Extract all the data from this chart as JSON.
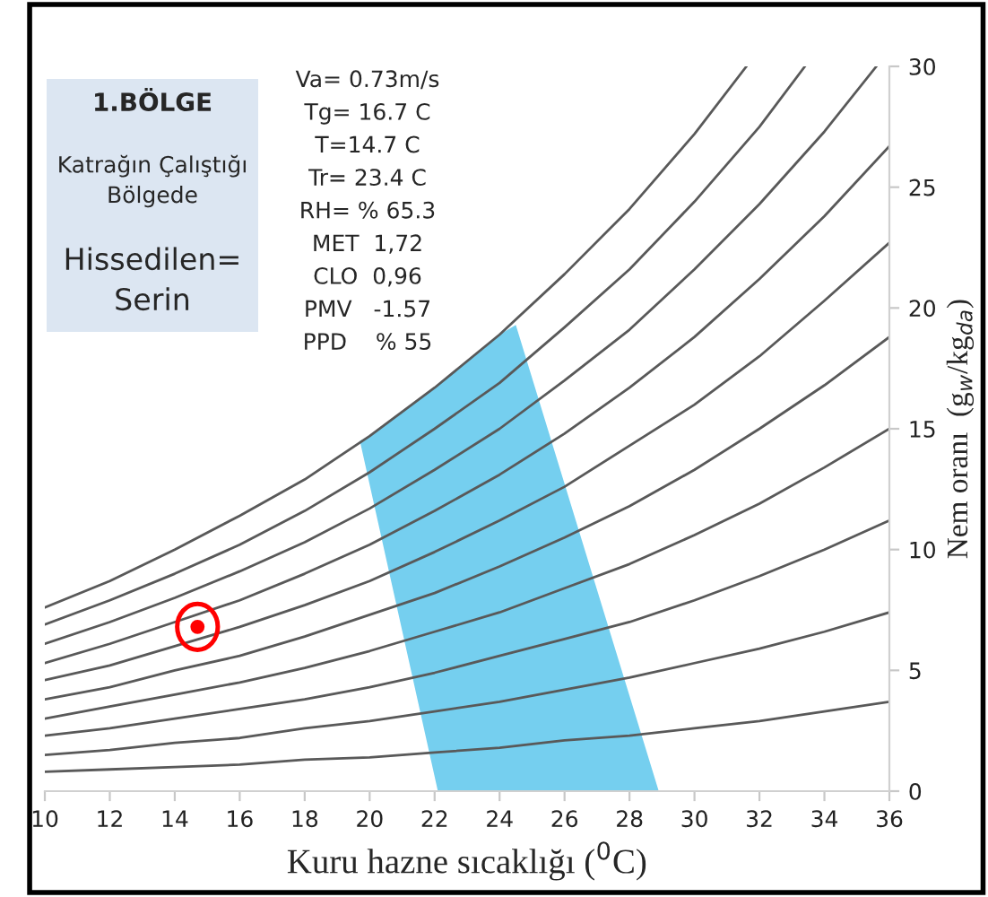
{
  "chart_data": {
    "type": "line",
    "xlabel": "Kuru hazne sıcaklığı ($^{0}$C)",
    "ylabel": "Nem oranı  (g$_{w}$/kg$_{da}$)",
    "x": [
      10,
      12,
      14,
      16,
      18,
      20,
      22,
      24,
      26,
      28,
      30,
      32,
      34,
      36
    ],
    "xlim": [
      10,
      36
    ],
    "xticks": [
      10,
      12,
      14,
      16,
      18,
      20,
      22,
      24,
      26,
      28,
      30,
      32,
      34,
      36
    ],
    "ylim": [
      0,
      30
    ],
    "yticks": [
      0,
      5,
      10,
      15,
      20,
      25,
      30
    ],
    "grid": false,
    "legend": false,
    "marker": "none",
    "line_style": "solid",
    "series": [
      {
        "color": "#595959",
        "values": [
          0.8,
          0.9,
          1.0,
          1.1,
          1.3,
          1.4,
          1.6,
          1.8,
          2.1,
          2.3,
          2.6,
          2.9,
          3.3,
          3.7
        ]
      },
      {
        "color": "#595959",
        "values": [
          1.5,
          1.7,
          2.0,
          2.2,
          2.6,
          2.9,
          3.3,
          3.7,
          4.2,
          4.7,
          5.3,
          5.9,
          6.6,
          7.4
        ]
      },
      {
        "color": "#595959",
        "values": [
          2.3,
          2.6,
          3.0,
          3.4,
          3.8,
          4.3,
          4.9,
          5.6,
          6.3,
          7.0,
          7.9,
          8.9,
          10.0,
          11.2
        ]
      },
      {
        "color": "#595959",
        "values": [
          3.0,
          3.5,
          4.0,
          4.5,
          5.1,
          5.8,
          6.6,
          7.4,
          8.4,
          9.4,
          10.6,
          11.9,
          13.4,
          15.0
        ]
      },
      {
        "color": "#595959",
        "values": [
          3.8,
          4.3,
          5.0,
          5.6,
          6.4,
          7.3,
          8.2,
          9.3,
          10.5,
          11.8,
          13.3,
          15.0,
          16.8,
          18.8
        ]
      },
      {
        "color": "#595959",
        "values": [
          4.6,
          5.2,
          6.0,
          6.8,
          7.7,
          8.7,
          9.9,
          11.2,
          12.6,
          14.3,
          16.0,
          18.0,
          20.3,
          22.7
        ]
      },
      {
        "color": "#595959",
        "values": [
          5.3,
          6.1,
          7.0,
          7.9,
          9.0,
          10.2,
          11.6,
          13.1,
          14.8,
          16.7,
          18.8,
          21.2,
          23.8,
          26.7
        ]
      },
      {
        "color": "#595959",
        "x": [
          10,
          12,
          14,
          16,
          18,
          20,
          22,
          24,
          26,
          28,
          30,
          32,
          34,
          35.6
        ],
        "values": [
          6.1,
          7.0,
          8.0,
          9.1,
          10.3,
          11.7,
          13.3,
          15.0,
          17.0,
          19.1,
          21.6,
          24.3,
          27.3,
          30
        ]
      },
      {
        "color": "#595959",
        "x": [
          10,
          12,
          14,
          16,
          18,
          20,
          22,
          24,
          26,
          28,
          30,
          32,
          33.4
        ],
        "values": [
          6.9,
          7.9,
          9.0,
          10.2,
          11.6,
          13.2,
          15.0,
          16.9,
          19.2,
          21.6,
          24.4,
          27.5,
          30
        ]
      },
      {
        "color": "#595959",
        "x": [
          10,
          12,
          14,
          16,
          18,
          20,
          22,
          24,
          26,
          28,
          30,
          31.6
        ],
        "values": [
          7.6,
          8.7,
          10.0,
          11.4,
          12.9,
          14.7,
          16.7,
          18.9,
          21.4,
          24.1,
          27.2,
          30
        ]
      },
      {
        "type": "area",
        "color": "#75cfef",
        "x": [
          19.7,
          20,
          22,
          24,
          24.5,
          28.9,
          22.1
        ],
        "values": [
          14.5,
          14.7,
          16.7,
          18.9,
          19.3,
          0,
          0
        ]
      },
      {
        "type": "scatter",
        "color": "#ff0000",
        "marker": "circle",
        "x": [
          14.7
        ],
        "values": [
          6.8
        ]
      }
    ],
    "annotations": [
      "1.BÖLGE",
      "Katrağın Çalıştığı\nBölgede",
      "Hissedilen=\nSerin",
      "Va= 0.73m/s",
      "Tg= 16.7 C",
      "T=14.7 C",
      "Tr= 23.4 C",
      "RH= % 65.3",
      "MET  1,72",
      "CLO  0,96",
      "PMV   -1.57",
      "PPD    % 55"
    ]
  }
}
